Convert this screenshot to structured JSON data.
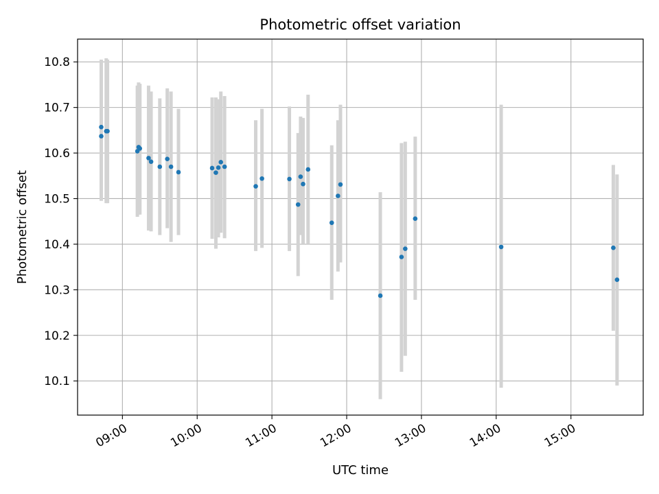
{
  "chart_data": {
    "type": "scatter",
    "title": "Photometric offset variation",
    "xlabel": "UTC time",
    "ylabel": "Photometric offset",
    "x_unit": "UTC time (HH:MM)",
    "xlim": [
      "08:24",
      "15:58"
    ],
    "ylim": [
      10.025,
      10.85
    ],
    "x_ticks": [
      "09:00",
      "10:00",
      "11:00",
      "12:00",
      "13:00",
      "14:00",
      "15:00"
    ],
    "y_ticks": [
      10.1,
      10.2,
      10.3,
      10.4,
      10.5,
      10.6,
      10.7,
      10.8
    ],
    "grid": true,
    "legend": "none",
    "colors": {
      "marker": "#1f77b4",
      "errorbar": "#d3d3d3",
      "grid": "#b0b0b0"
    },
    "points": [
      {
        "x": "08:43",
        "y": 10.637,
        "ylow": 10.495,
        "yhigh": 10.78
      },
      {
        "x": "08:43",
        "y": 10.657,
        "ylow": 10.505,
        "yhigh": 10.805
      },
      {
        "x": "08:47",
        "y": 10.648,
        "ylow": 10.49,
        "yhigh": 10.808
      },
      {
        "x": "08:48",
        "y": 10.648,
        "ylow": 10.49,
        "yhigh": 10.805
      },
      {
        "x": "09:12",
        "y": 10.604,
        "ylow": 10.46,
        "yhigh": 10.748
      },
      {
        "x": "09:13",
        "y": 10.613,
        "ylow": 10.465,
        "yhigh": 10.755
      },
      {
        "x": "09:14",
        "y": 10.61,
        "ylow": 10.465,
        "yhigh": 10.752
      },
      {
        "x": "09:21",
        "y": 10.589,
        "ylow": 10.43,
        "yhigh": 10.748
      },
      {
        "x": "09:23",
        "y": 10.581,
        "ylow": 10.428,
        "yhigh": 10.735
      },
      {
        "x": "09:30",
        "y": 10.57,
        "ylow": 10.42,
        "yhigh": 10.72
      },
      {
        "x": "09:36",
        "y": 10.587,
        "ylow": 10.435,
        "yhigh": 10.742
      },
      {
        "x": "09:39",
        "y": 10.57,
        "ylow": 10.405,
        "yhigh": 10.735
      },
      {
        "x": "09:45",
        "y": 10.558,
        "ylow": 10.42,
        "yhigh": 10.697
      },
      {
        "x": "10:12",
        "y": 10.567,
        "ylow": 10.412,
        "yhigh": 10.722
      },
      {
        "x": "10:15",
        "y": 10.557,
        "ylow": 10.39,
        "yhigh": 10.722
      },
      {
        "x": "10:17",
        "y": 10.568,
        "ylow": 10.415,
        "yhigh": 10.718
      },
      {
        "x": "10:19",
        "y": 10.58,
        "ylow": 10.425,
        "yhigh": 10.735
      },
      {
        "x": "10:22",
        "y": 10.57,
        "ylow": 10.413,
        "yhigh": 10.725
      },
      {
        "x": "10:47",
        "y": 10.527,
        "ylow": 10.385,
        "yhigh": 10.672
      },
      {
        "x": "10:52",
        "y": 10.544,
        "ylow": 10.392,
        "yhigh": 10.697
      },
      {
        "x": "11:14",
        "y": 10.543,
        "ylow": 10.385,
        "yhigh": 10.702
      },
      {
        "x": "11:21",
        "y": 10.487,
        "ylow": 10.33,
        "yhigh": 10.644
      },
      {
        "x": "11:23",
        "y": 10.548,
        "ylow": 10.42,
        "yhigh": 10.68
      },
      {
        "x": "11:25",
        "y": 10.532,
        "ylow": 10.4,
        "yhigh": 10.677
      },
      {
        "x": "11:29",
        "y": 10.564,
        "ylow": 10.4,
        "yhigh": 10.728
      },
      {
        "x": "11:48",
        "y": 10.447,
        "ylow": 10.278,
        "yhigh": 10.617
      },
      {
        "x": "11:53",
        "y": 10.506,
        "ylow": 10.34,
        "yhigh": 10.672
      },
      {
        "x": "11:55",
        "y": 10.531,
        "ylow": 10.36,
        "yhigh": 10.706
      },
      {
        "x": "12:27",
        "y": 10.287,
        "ylow": 10.06,
        "yhigh": 10.514
      },
      {
        "x": "12:44",
        "y": 10.372,
        "ylow": 10.12,
        "yhigh": 10.622
      },
      {
        "x": "12:47",
        "y": 10.39,
        "ylow": 10.155,
        "yhigh": 10.625
      },
      {
        "x": "12:55",
        "y": 10.456,
        "ylow": 10.278,
        "yhigh": 10.636
      },
      {
        "x": "14:04",
        "y": 10.394,
        "ylow": 10.085,
        "yhigh": 10.706
      },
      {
        "x": "15:34",
        "y": 10.392,
        "ylow": 10.21,
        "yhigh": 10.574
      },
      {
        "x": "15:37",
        "y": 10.322,
        "ylow": 10.09,
        "yhigh": 10.553
      }
    ]
  }
}
